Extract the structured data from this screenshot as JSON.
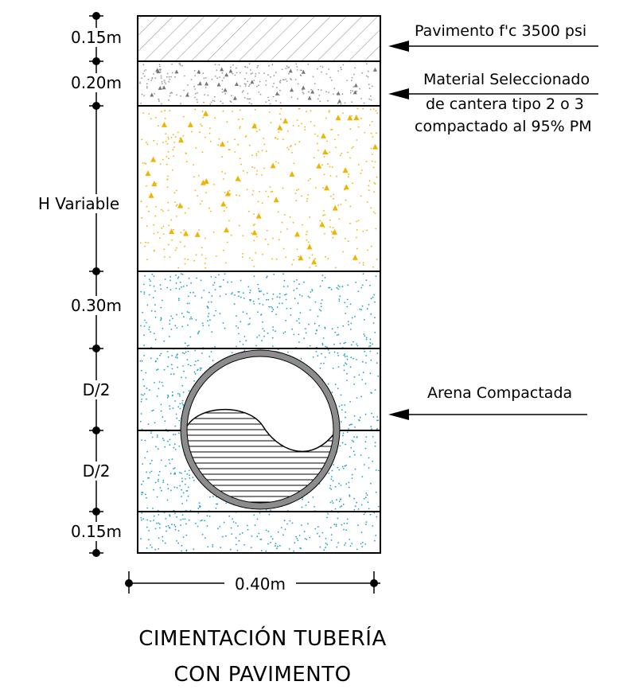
{
  "dimensions": {
    "pavement_thickness": "0.15m",
    "base_thickness": "0.20m",
    "fill_height": "H Variable",
    "cover_over_pipe": "0.30m",
    "upper_half_pipe": "D/2",
    "lower_half_pipe": "D/2",
    "bedding_thickness": "0.15m",
    "trench_width": "0.40m"
  },
  "annotations": {
    "pavement": "Pavimento f'c 3500 psi",
    "base_line1": "Material Seleccionado",
    "base_line2": "de cantera tipo 2 o 3",
    "base_line3": "compactado al 95% PM",
    "sand": "Arena Compactada"
  },
  "title": {
    "line1": "CIMENTACIÓN TUBERÍA",
    "line2": "CON PAVIMENTO"
  },
  "colors": {
    "outline": "#000000",
    "pavement_hatch": "#8a8a8a",
    "base_gravel": "#9a9a9a",
    "fill_aggregate": "#f0b400",
    "sand_dots": "#1aa3c4",
    "pipe_wall": "#8c8c8c"
  }
}
